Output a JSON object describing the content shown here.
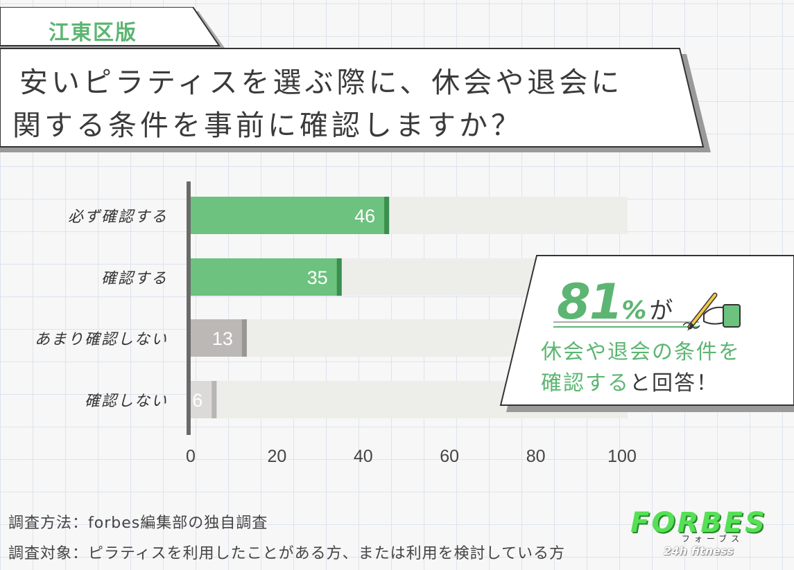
{
  "region_tag": "江東区版",
  "title": {
    "line1": "安いピラティスを選ぶ際に、休会や退会に",
    "line2": "関する条件を事前に確認しますか？"
  },
  "chart_data": {
    "type": "bar",
    "orientation": "horizontal",
    "title": "安いピラティスを選ぶ際に、休会や退会に関する条件を事前に確認しますか？",
    "categories": [
      "必ず確認する",
      "確認する",
      "あまり確認しない",
      "確認しない"
    ],
    "values": [
      46,
      35,
      13,
      6
    ],
    "bar_colors": [
      "#6cc27e",
      "#6cc27e",
      "#bcb8b6",
      "#dcdad8"
    ],
    "edge_colors": [
      "#3a8f4f",
      "#3a8f4f",
      "#9a9693",
      "#b8b5b2"
    ],
    "track_color": "#ededea",
    "xlim": [
      0,
      100
    ],
    "xticks": [
      0,
      20,
      40,
      60,
      80,
      100
    ],
    "xlabel": "",
    "ylabel": "",
    "grid": false
  },
  "callout": {
    "percent": "81",
    "unit": "%",
    "particle": "が",
    "line1": "休会や退会の条件を",
    "line2_green": "確認する",
    "line2_rest": "と回答！",
    "accent_color": "#5cb572"
  },
  "footnotes": {
    "method": "調査方法：forbes編集部の独自調査",
    "target": "調査対象：ピラティスを利用したことがある方、または利用を検討している方"
  },
  "logo": {
    "main": "FORBES",
    "kana": "フォーブス",
    "sub": "24h fitness"
  },
  "icons": [
    "pencil-hand-icon"
  ]
}
